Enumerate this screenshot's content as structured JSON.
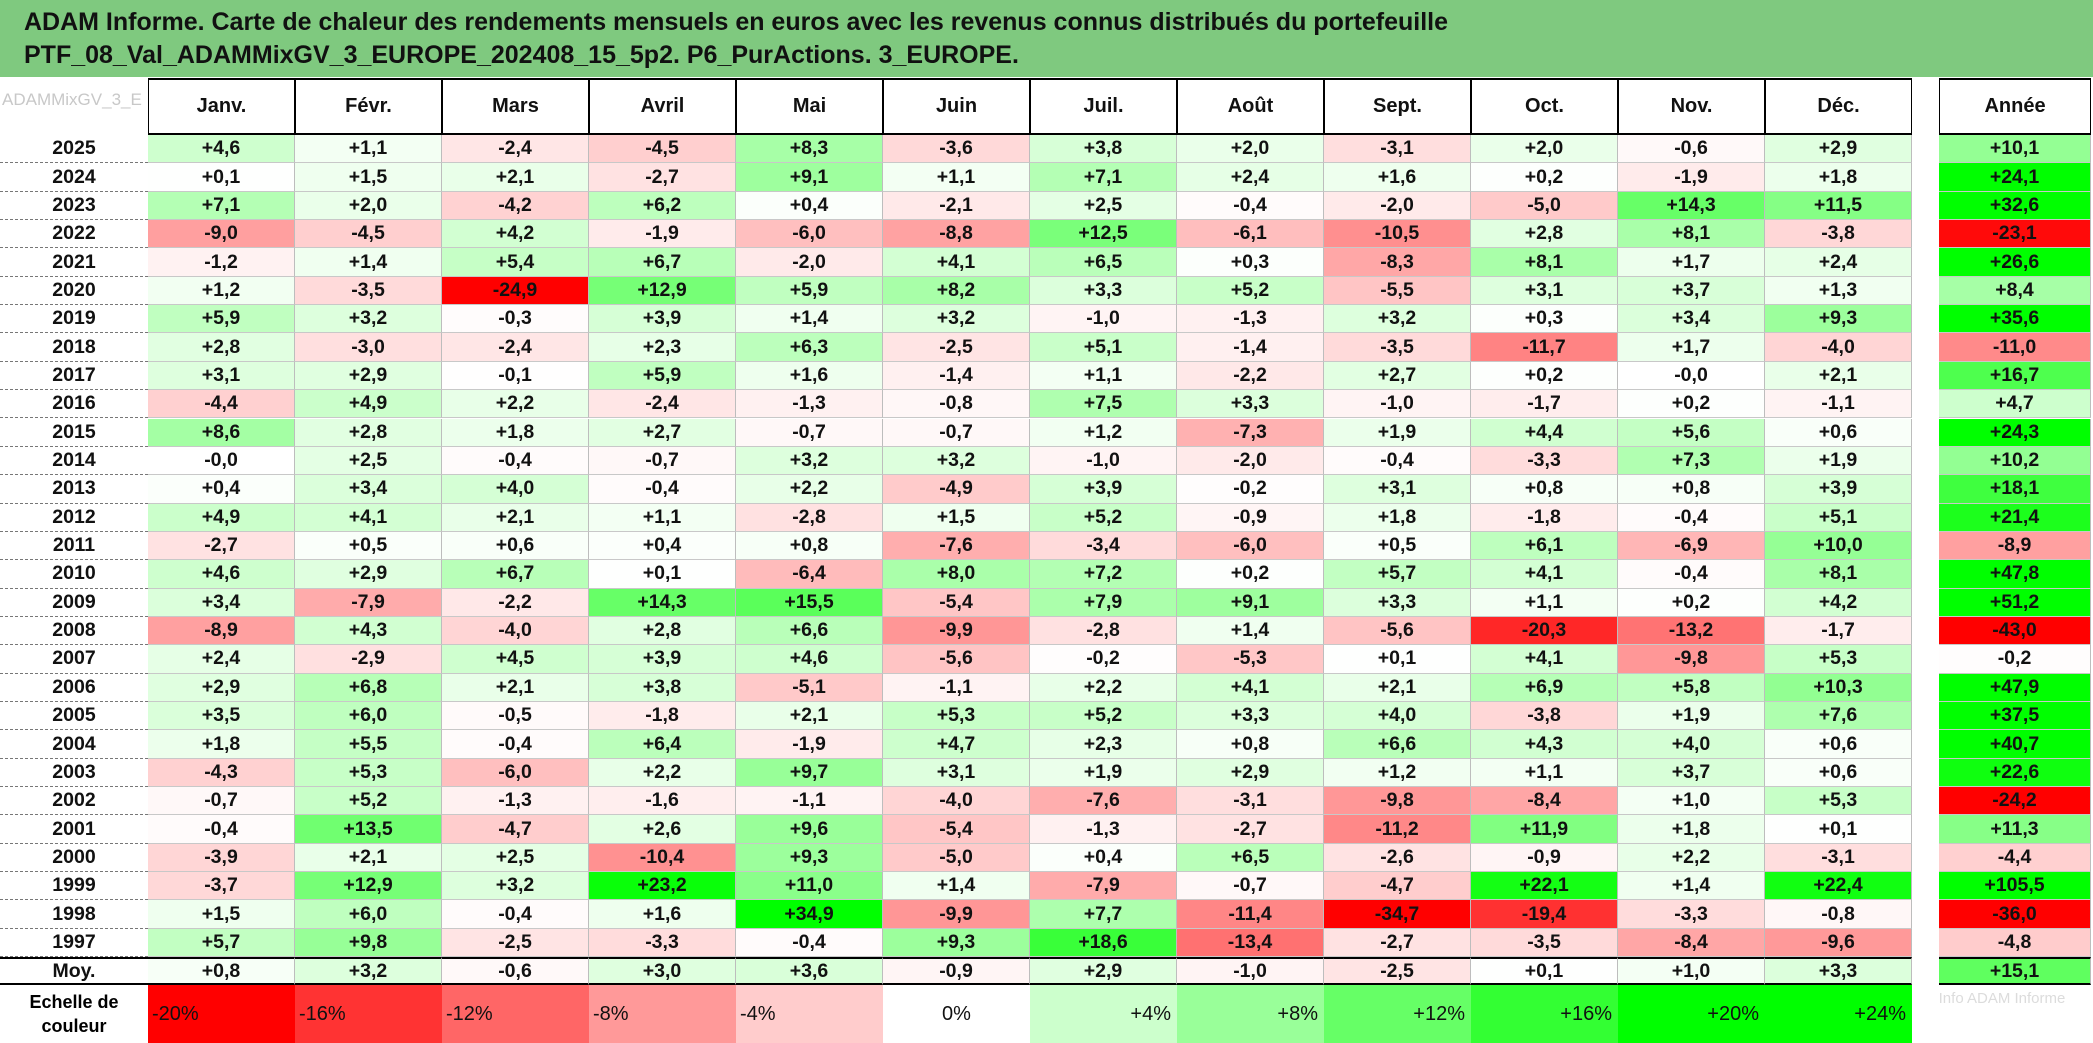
{
  "title": {
    "line1": "ADAM Informe. Carte de chaleur des rendements mensuels en euros avec les revenus connus distribués du portefeuille",
    "line2": "PTF_08_Val_ADAMMixGV_3_EUROPE_202408_15_5p2. P6_PurActions. 3_EUROPE."
  },
  "corner_text": "ADAMMixGV_3_E",
  "legend_label": "Echelle de couleur",
  "ghost_text": "Info ADAM Informe",
  "chart_data": {
    "type": "heatmap",
    "title": "ADAM Informe. Carte de chaleur des rendements mensuels en euros avec les revenus connus distribués du portefeuille PTF_08_Val_ADAMMixGV_3_EUROPE_202408_15_5p2. P6_PurActions. 3_EUROPE.",
    "columns": [
      "Janv.",
      "Févr.",
      "Mars",
      "Avril",
      "Mai",
      "Juin",
      "Juil.",
      "Août",
      "Sept.",
      "Oct.",
      "Nov.",
      "Déc."
    ],
    "annual_column": "Année",
    "rows": [
      {
        "year": "2025",
        "values": [
          "+4,6",
          "+1,1",
          "-2,4",
          "-4,5",
          "+8,3",
          "-3,6",
          "+3,8",
          "+2,0",
          "-3,1",
          "+2,0",
          "-0,6",
          "+2,9"
        ],
        "annual": "+10,1"
      },
      {
        "year": "2024",
        "values": [
          "+0,1",
          "+1,5",
          "+2,1",
          "-2,7",
          "+9,1",
          "+1,1",
          "+7,1",
          "+2,4",
          "+1,6",
          "+0,2",
          "-1,9",
          "+1,8"
        ],
        "annual": "+24,1"
      },
      {
        "year": "2023",
        "values": [
          "+7,1",
          "+2,0",
          "-4,2",
          "+6,2",
          "+0,4",
          "-2,1",
          "+2,5",
          "-0,4",
          "-2,0",
          "-5,0",
          "+14,3",
          "+11,5"
        ],
        "annual": "+32,6"
      },
      {
        "year": "2022",
        "values": [
          "-9,0",
          "-4,5",
          "+4,2",
          "-1,9",
          "-6,0",
          "-8,8",
          "+12,5",
          "-6,1",
          "-10,5",
          "+2,8",
          "+8,1",
          "-3,8"
        ],
        "annual": "-23,1"
      },
      {
        "year": "2021",
        "values": [
          "-1,2",
          "+1,4",
          "+5,4",
          "+6,7",
          "-2,0",
          "+4,1",
          "+6,5",
          "+0,3",
          "-8,3",
          "+8,1",
          "+1,7",
          "+2,4"
        ],
        "annual": "+26,6"
      },
      {
        "year": "2020",
        "values": [
          "+1,2",
          "-3,5",
          "-24,9",
          "+12,9",
          "+5,9",
          "+8,2",
          "+3,3",
          "+5,2",
          "-5,5",
          "+3,1",
          "+3,7",
          "+1,3"
        ],
        "annual": "+8,4"
      },
      {
        "year": "2019",
        "values": [
          "+5,9",
          "+3,2",
          "-0,3",
          "+3,9",
          "+1,4",
          "+3,2",
          "-1,0",
          "-1,3",
          "+3,2",
          "+0,3",
          "+3,4",
          "+9,3"
        ],
        "annual": "+35,6"
      },
      {
        "year": "2018",
        "values": [
          "+2,8",
          "-3,0",
          "-2,4",
          "+2,3",
          "+6,3",
          "-2,5",
          "+5,1",
          "-1,4",
          "-3,5",
          "-11,7",
          "+1,7",
          "-4,0"
        ],
        "annual": "-11,0"
      },
      {
        "year": "2017",
        "values": [
          "+3,1",
          "+2,9",
          "-0,1",
          "+5,9",
          "+1,6",
          "-1,4",
          "+1,1",
          "-2,2",
          "+2,7",
          "+0,2",
          "-0,0",
          "+2,1"
        ],
        "annual": "+16,7"
      },
      {
        "year": "2016",
        "values": [
          "-4,4",
          "+4,9",
          "+2,2",
          "-2,4",
          "-1,3",
          "-0,8",
          "+7,5",
          "+3,3",
          "-1,0",
          "-1,7",
          "+0,2",
          "-1,1"
        ],
        "annual": "+4,7"
      },
      {
        "year": "2015",
        "values": [
          "+8,6",
          "+2,8",
          "+1,8",
          "+2,7",
          "-0,7",
          "-0,7",
          "+1,2",
          "-7,3",
          "+1,9",
          "+4,4",
          "+5,6",
          "+0,6"
        ],
        "annual": "+24,3"
      },
      {
        "year": "2014",
        "values": [
          "-0,0",
          "+2,5",
          "-0,4",
          "-0,7",
          "+3,2",
          "+3,2",
          "-1,0",
          "-2,0",
          "-0,4",
          "-3,3",
          "+7,3",
          "+1,9"
        ],
        "annual": "+10,2"
      },
      {
        "year": "2013",
        "values": [
          "+0,4",
          "+3,4",
          "+4,0",
          "-0,4",
          "+2,2",
          "-4,9",
          "+3,9",
          "-0,2",
          "+3,1",
          "+0,8",
          "+0,8",
          "+3,9"
        ],
        "annual": "+18,1"
      },
      {
        "year": "2012",
        "values": [
          "+4,9",
          "+4,1",
          "+2,1",
          "+1,1",
          "-2,8",
          "+1,5",
          "+5,2",
          "-0,9",
          "+1,8",
          "-1,8",
          "-0,4",
          "+5,1"
        ],
        "annual": "+21,4"
      },
      {
        "year": "2011",
        "values": [
          "-2,7",
          "+0,5",
          "+0,6",
          "+0,4",
          "+0,8",
          "-7,6",
          "-3,4",
          "-6,0",
          "+0,5",
          "+6,1",
          "-6,9",
          "+10,0"
        ],
        "annual": "-8,9"
      },
      {
        "year": "2010",
        "values": [
          "+4,6",
          "+2,9",
          "+6,7",
          "+0,1",
          "-6,4",
          "+8,0",
          "+7,2",
          "+0,2",
          "+5,7",
          "+4,1",
          "-0,4",
          "+8,1"
        ],
        "annual": "+47,8"
      },
      {
        "year": "2009",
        "values": [
          "+3,4",
          "-7,9",
          "-2,2",
          "+14,3",
          "+15,5",
          "-5,4",
          "+7,9",
          "+9,1",
          "+3,3",
          "+1,1",
          "+0,2",
          "+4,2"
        ],
        "annual": "+51,2"
      },
      {
        "year": "2008",
        "values": [
          "-8,9",
          "+4,3",
          "-4,0",
          "+2,8",
          "+6,6",
          "-9,9",
          "-2,8",
          "+1,4",
          "-5,6",
          "-20,3",
          "-13,2",
          "-1,7"
        ],
        "annual": "-43,0"
      },
      {
        "year": "2007",
        "values": [
          "+2,4",
          "-2,9",
          "+4,5",
          "+3,9",
          "+4,6",
          "-5,6",
          "-0,2",
          "-5,3",
          "+0,1",
          "+4,1",
          "-9,8",
          "+5,3"
        ],
        "annual": "-0,2"
      },
      {
        "year": "2006",
        "values": [
          "+2,9",
          "+6,8",
          "+2,1",
          "+3,8",
          "-5,1",
          "-1,1",
          "+2,2",
          "+4,1",
          "+2,1",
          "+6,9",
          "+5,8",
          "+10,3"
        ],
        "annual": "+47,9"
      },
      {
        "year": "2005",
        "values": [
          "+3,5",
          "+6,0",
          "-0,5",
          "-1,8",
          "+2,1",
          "+5,3",
          "+5,2",
          "+3,3",
          "+4,0",
          "-3,8",
          "+1,9",
          "+7,6"
        ],
        "annual": "+37,5"
      },
      {
        "year": "2004",
        "values": [
          "+1,8",
          "+5,5",
          "-0,4",
          "+6,4",
          "-1,9",
          "+4,7",
          "+2,3",
          "+0,8",
          "+6,6",
          "+4,3",
          "+4,0",
          "+0,6"
        ],
        "annual": "+40,7"
      },
      {
        "year": "2003",
        "values": [
          "-4,3",
          "+5,3",
          "-6,0",
          "+2,2",
          "+9,7",
          "+3,1",
          "+1,9",
          "+2,9",
          "+1,2",
          "+1,1",
          "+3,7",
          "+0,6"
        ],
        "annual": "+22,6"
      },
      {
        "year": "2002",
        "values": [
          "-0,7",
          "+5,2",
          "-1,3",
          "-1,6",
          "-1,1",
          "-4,0",
          "-7,6",
          "-3,1",
          "-9,8",
          "-8,4",
          "+1,0",
          "+5,3"
        ],
        "annual": "-24,2"
      },
      {
        "year": "2001",
        "values": [
          "-0,4",
          "+13,5",
          "-4,7",
          "+2,6",
          "+9,6",
          "-5,4",
          "-1,3",
          "-2,7",
          "-11,2",
          "+11,9",
          "+1,8",
          "+0,1"
        ],
        "annual": "+11,3"
      },
      {
        "year": "2000",
        "values": [
          "-3,9",
          "+2,1",
          "+2,5",
          "-10,4",
          "+9,3",
          "-5,0",
          "+0,4",
          "+6,5",
          "-2,6",
          "-0,9",
          "+2,2",
          "-3,1"
        ],
        "annual": "-4,4"
      },
      {
        "year": "1999",
        "values": [
          "-3,7",
          "+12,9",
          "+3,2",
          "+23,2",
          "+11,0",
          "+1,4",
          "-7,9",
          "-0,7",
          "-4,7",
          "+22,1",
          "+1,4",
          "+22,4"
        ],
        "annual": "+105,5"
      },
      {
        "year": "1998",
        "values": [
          "+1,5",
          "+6,0",
          "-0,4",
          "+1,6",
          "+34,9",
          "-9,9",
          "+7,7",
          "-11,4",
          "-34,7",
          "-19,4",
          "-3,3",
          "-0,8"
        ],
        "annual": "-36,0"
      },
      {
        "year": "1997",
        "values": [
          "+5,7",
          "+9,8",
          "-2,5",
          "-3,3",
          "-0,4",
          "+9,3",
          "+18,6",
          "-13,4",
          "-2,7",
          "-3,5",
          "-8,4",
          "-9,6"
        ],
        "annual": "-4,8"
      }
    ],
    "average": {
      "label": "Moy.",
      "values": [
        "+0,8",
        "+3,2",
        "-0,6",
        "+3,0",
        "+3,6",
        "-0,9",
        "+2,9",
        "-1,0",
        "-2,5",
        "+0,1",
        "+1,0",
        "+3,3"
      ],
      "annual": "+15,1"
    },
    "scale": [
      "-20%",
      "-16%",
      "-12%",
      "-8%",
      "-4%",
      "0%",
      "+4%",
      "+8%",
      "+12%",
      "+16%",
      "+20%",
      "+24%"
    ],
    "scale_values": [
      -20,
      -16,
      -12,
      -8,
      -4,
      0,
      4,
      8,
      12,
      16,
      20,
      24
    ],
    "colors": {
      "negative": "#ff0000",
      "neutral": "#ffffff",
      "positive": "#00ff00",
      "title_bg": "#7fc97f"
    }
  }
}
